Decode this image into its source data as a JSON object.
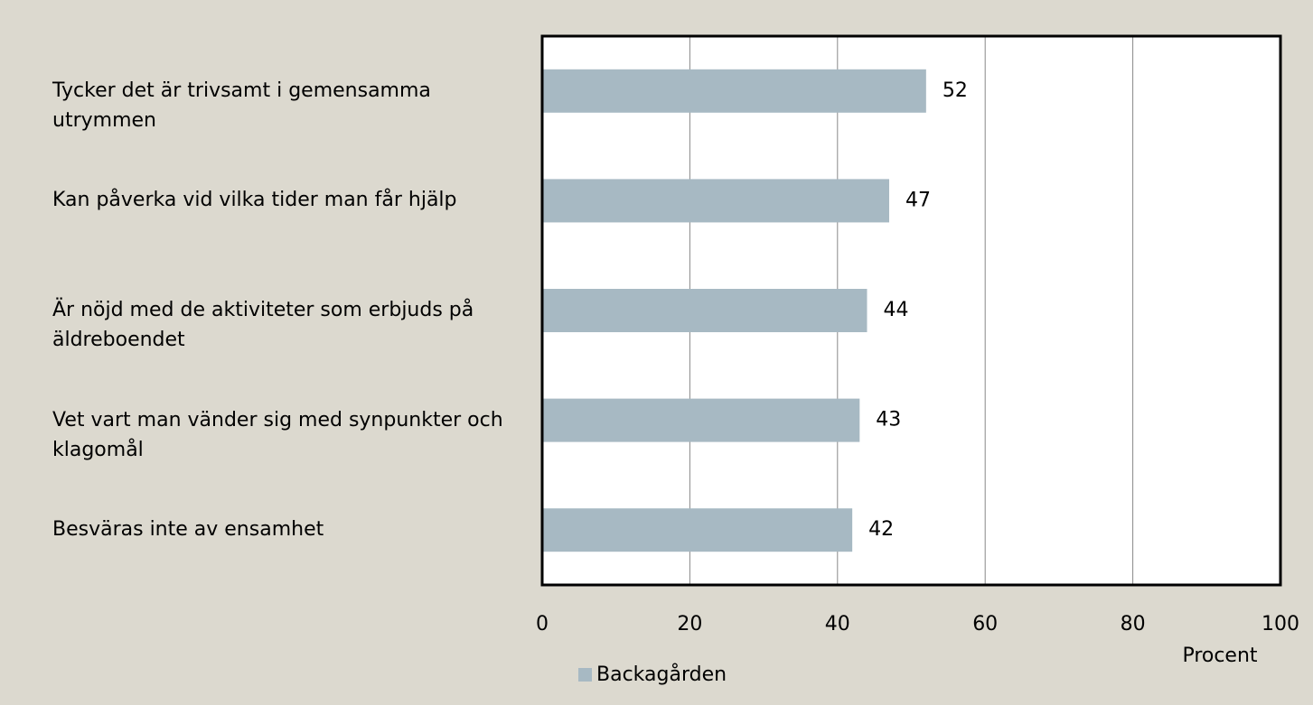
{
  "chart_data": {
    "type": "barh",
    "categories": [
      "Tycker det är trivsamt i gemensamma utrymmen",
      "Kan påverka vid vilka tider man får hjälp",
      "Är nöjd med de aktiviteter som erbjuds på äldreboendet",
      "Vet vart man vänder sig med synpunkter och klagomål",
      "Besväras inte av ensamhet"
    ],
    "series": [
      {
        "name": "Backagården",
        "color": "#a7b9c3",
        "values": [
          52,
          47,
          44,
          43,
          42
        ]
      }
    ],
    "xlim": [
      0,
      100
    ],
    "xticks": [
      0,
      20,
      40,
      60,
      80,
      100
    ],
    "xlabel": "Procent",
    "grid": true,
    "legend": "bottom"
  }
}
